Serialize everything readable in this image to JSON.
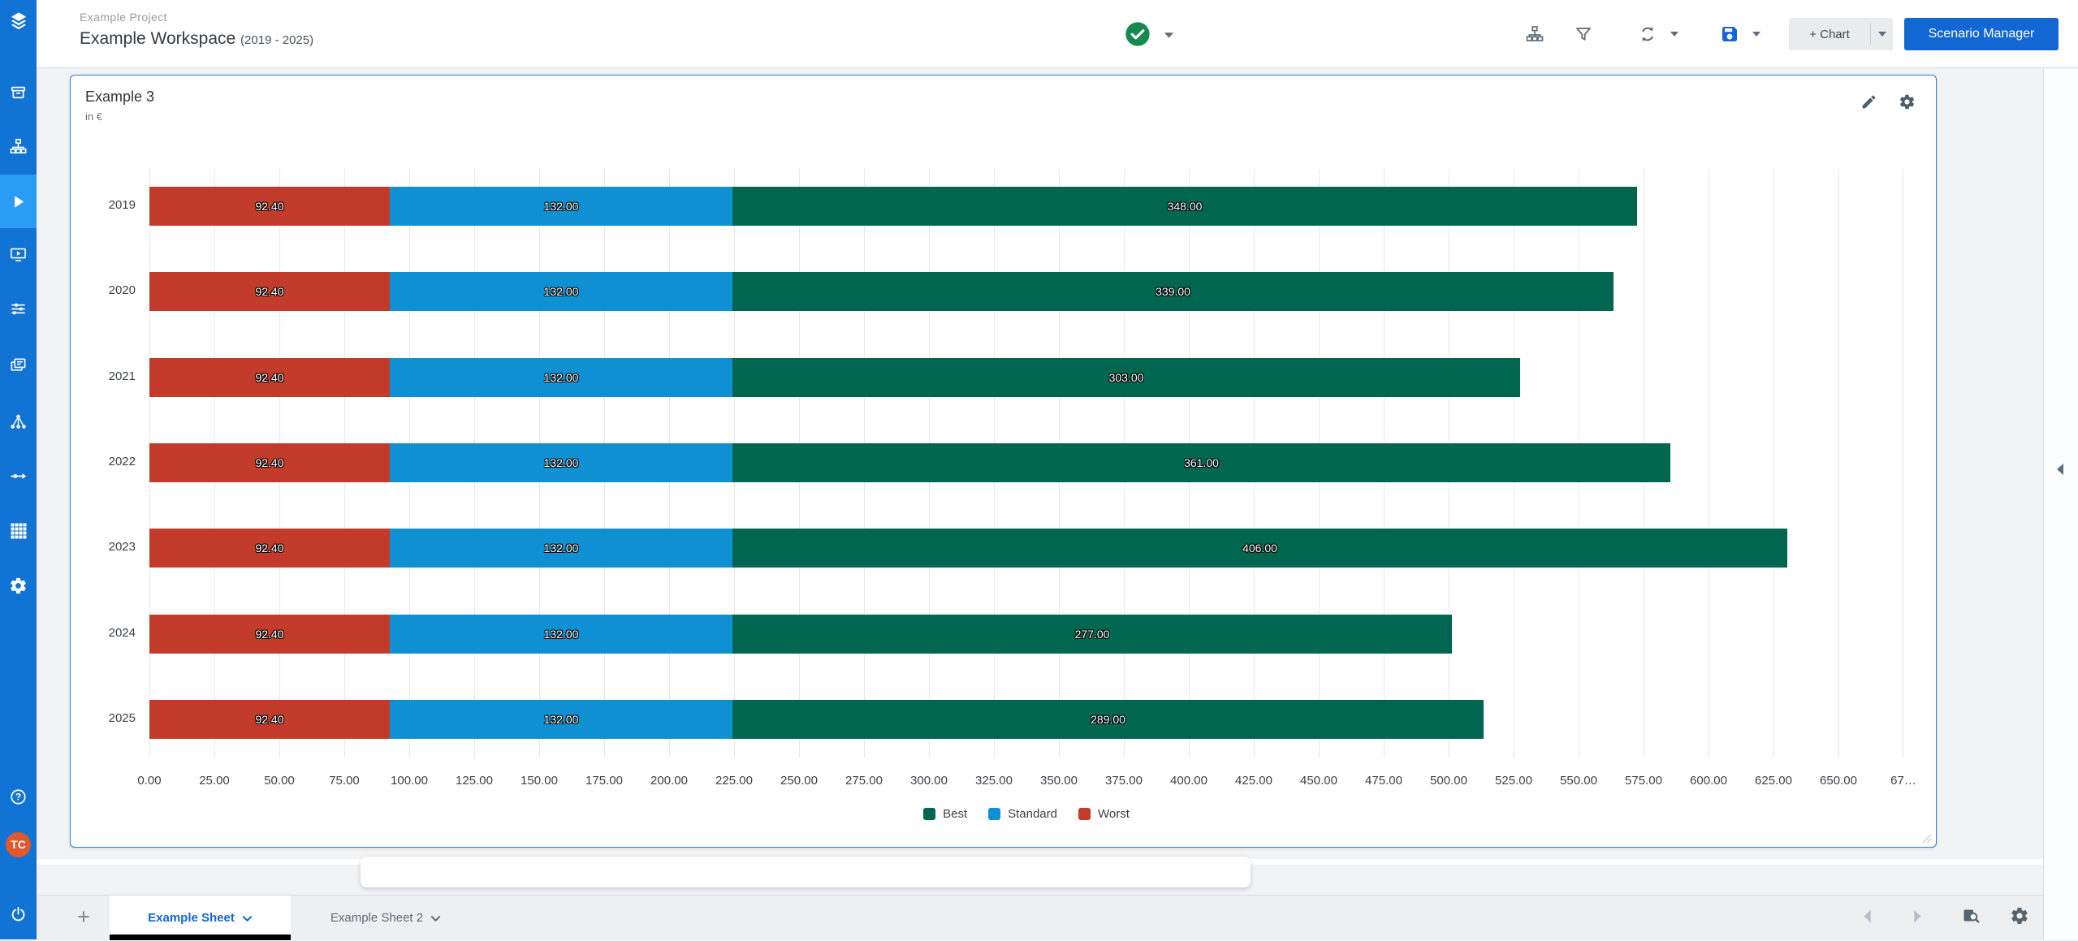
{
  "colors": {
    "sidebar": "#1173d4",
    "sidebarActive": "#2b9cf4",
    "accent": "#1267d2",
    "statusGreen": "#18894e",
    "avatar": "#e0592c",
    "worst": "#c23b2a",
    "standard": "#0f90d2",
    "best": "#00664f"
  },
  "sidebar": {
    "logo_icon": "layers-logo",
    "items": [
      {
        "name": "archive",
        "icon": "archive"
      },
      {
        "name": "model",
        "icon": "sitemap"
      },
      {
        "name": "simulation",
        "icon": "play",
        "active": true
      },
      {
        "name": "presentation",
        "icon": "presentation"
      },
      {
        "name": "assumptions",
        "icon": "sliders"
      },
      {
        "name": "reports",
        "icon": "copy"
      },
      {
        "name": "scenarios",
        "icon": "network"
      },
      {
        "name": "dataflow",
        "icon": "flow"
      },
      {
        "name": "data-tables",
        "icon": "grid"
      },
      {
        "name": "settings",
        "icon": "gear"
      }
    ],
    "bottom": [
      {
        "name": "help",
        "icon": "help"
      },
      {
        "name": "user-avatar",
        "initials": "TC"
      },
      {
        "name": "logout",
        "icon": "power"
      }
    ]
  },
  "header": {
    "project": "Example Project",
    "workspace": "Example Workspace",
    "range": "(2019 - 2025)",
    "status_icon": "check-circle",
    "toolbar_icons": [
      "hierarchy",
      "filter",
      "refresh",
      "save"
    ],
    "chart_button": "+ Chart",
    "scenario_manager": "Scenario Manager"
  },
  "panel": {
    "title": "Example 3",
    "unit": "in €",
    "actions": [
      "edit",
      "settings"
    ]
  },
  "chart_data": {
    "type": "bar",
    "orientation": "horizontal",
    "stacked": true,
    "title": "Example 3",
    "unit": "in €",
    "categories": [
      "2019",
      "2020",
      "2021",
      "2022",
      "2023",
      "2024",
      "2025"
    ],
    "series": [
      {
        "name": "Worst",
        "color": "#c23b2a",
        "values": [
          92.4,
          92.4,
          92.4,
          92.4,
          92.4,
          92.4,
          92.4
        ]
      },
      {
        "name": "Standard",
        "color": "#0f90d2",
        "values": [
          132,
          132,
          132,
          132,
          132,
          132,
          132
        ]
      },
      {
        "name": "Best",
        "color": "#00664f",
        "values": [
          348,
          339,
          303,
          361,
          406,
          277,
          289
        ]
      }
    ],
    "value_label_format": "two-decimals",
    "x_axis": {
      "min": 0,
      "max": 675,
      "tick_step": 25,
      "tick_labels": [
        "0.00",
        "25.00",
        "50.00",
        "75.00",
        "100.00",
        "125.00",
        "150.00",
        "175.00",
        "200.00",
        "225.00",
        "250.00",
        "275.00",
        "300.00",
        "325.00",
        "350.00",
        "375.00",
        "400.00",
        "425.00",
        "450.00",
        "475.00",
        "500.00",
        "525.00",
        "550.00",
        "575.00",
        "600.00",
        "625.00",
        "650.00",
        "67…"
      ]
    },
    "gridlines": "vertical",
    "legend": {
      "position": "bottom",
      "items": [
        {
          "label": "Best",
          "color": "#00664f"
        },
        {
          "label": "Standard",
          "color": "#0f90d2"
        },
        {
          "label": "Worst",
          "color": "#c23b2a"
        }
      ]
    }
  },
  "sheet_tabs": {
    "add_label": "+",
    "tabs": [
      {
        "label": "Example Sheet",
        "active": true
      },
      {
        "label": "Example Sheet 2",
        "active": false
      }
    ]
  },
  "bottom_toolbar": {
    "icons": [
      "caret-left",
      "caret-right",
      "find-sheet",
      "gear"
    ]
  }
}
